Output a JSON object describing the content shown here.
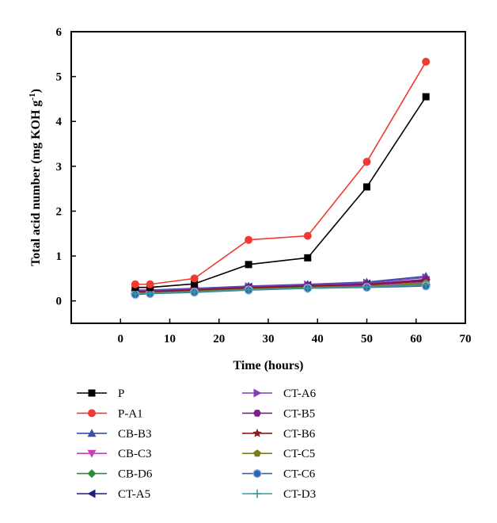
{
  "chart_data": {
    "type": "line",
    "title": "",
    "xlabel": "Time (hours)",
    "ylabel_main": "Total acid number (mg KOH g",
    "ylabel_sup": "-1",
    "ylabel_close": ")",
    "xlim": [
      -10,
      70
    ],
    "ylim": [
      -0.5,
      6
    ],
    "xticks": [
      0,
      10,
      20,
      30,
      40,
      50,
      60,
      70
    ],
    "yticks": [
      0,
      1,
      2,
      3,
      4,
      5,
      6
    ],
    "xtick_labels": [
      "0",
      "10",
      "20",
      "30",
      "40",
      "50",
      "60",
      "70"
    ],
    "ytick_labels": [
      "0",
      "1",
      "2",
      "3",
      "4",
      "5",
      "6"
    ],
    "grid": false,
    "legend_position": "bottom",
    "x": [
      3,
      6,
      15,
      26,
      38,
      50,
      62
    ],
    "series": [
      {
        "name": "P",
        "color": "#000000",
        "marker": "square",
        "values": [
          0.3,
          0.3,
          0.38,
          0.81,
          0.96,
          2.54,
          4.55
        ]
      },
      {
        "name": "P-A1",
        "color": "#ef3b32",
        "marker": "circle",
        "values": [
          0.37,
          0.37,
          0.5,
          1.36,
          1.45,
          3.1,
          5.33
        ]
      },
      {
        "name": "CB-B3",
        "color": "#3a4fa8",
        "marker": "triangle-up",
        "values": [
          0.24,
          0.24,
          0.28,
          0.33,
          0.37,
          0.42,
          0.55
        ]
      },
      {
        "name": "CB-C3",
        "color": "#c83fbd",
        "marker": "triangle-down",
        "values": [
          0.19,
          0.2,
          0.23,
          0.28,
          0.31,
          0.34,
          0.41
        ]
      },
      {
        "name": "CB-D6",
        "color": "#2e8b3a",
        "marker": "diamond",
        "values": [
          0.18,
          0.19,
          0.22,
          0.27,
          0.3,
          0.32,
          0.38
        ]
      },
      {
        "name": "CT-A5",
        "color": "#1f1f80",
        "marker": "triangle-left",
        "values": [
          0.22,
          0.22,
          0.26,
          0.31,
          0.35,
          0.38,
          0.46
        ]
      },
      {
        "name": "CT-A6",
        "color": "#7b3fb8",
        "marker": "triangle-right",
        "values": [
          0.23,
          0.23,
          0.27,
          0.32,
          0.36,
          0.4,
          0.52
        ]
      },
      {
        "name": "CT-B5",
        "color": "#7a1f8c",
        "marker": "hexagon",
        "values": [
          0.21,
          0.21,
          0.25,
          0.3,
          0.34,
          0.37,
          0.48
        ]
      },
      {
        "name": "CT-B6",
        "color": "#8a1a1a",
        "marker": "star",
        "values": [
          0.2,
          0.2,
          0.24,
          0.29,
          0.33,
          0.36,
          0.44
        ]
      },
      {
        "name": "CT-C5",
        "color": "#7d7d1f",
        "marker": "pentagon",
        "values": [
          0.17,
          0.18,
          0.21,
          0.26,
          0.29,
          0.31,
          0.4
        ]
      },
      {
        "name": "CT-C6",
        "color": "#2f66b0",
        "marker": "circle-shaded",
        "values": [
          0.14,
          0.16,
          0.19,
          0.24,
          0.28,
          0.3,
          0.33
        ]
      },
      {
        "name": "CT-D3",
        "color": "#3a9a9a",
        "marker": "plus",
        "values": [
          0.16,
          0.17,
          0.2,
          0.25,
          0.28,
          0.31,
          0.36
        ]
      }
    ]
  }
}
